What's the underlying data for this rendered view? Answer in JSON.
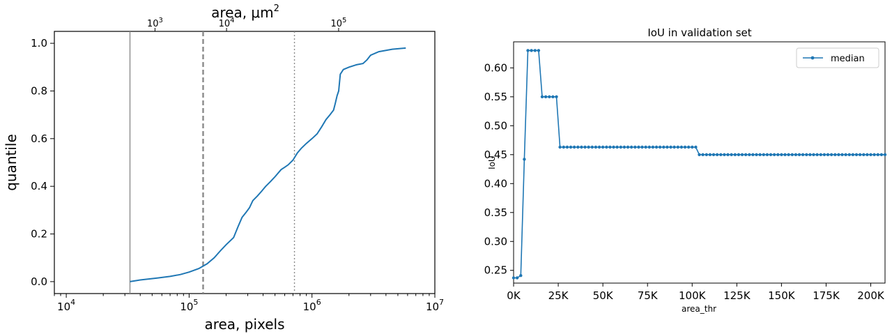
{
  "chart_data": [
    {
      "type": "line",
      "title": "",
      "xlabel": "area, pixels",
      "ylabel": "quantile",
      "x2label": "area, μm",
      "x2label_sup": "2",
      "xscale": "log",
      "x2scale": "log",
      "xlim": [
        8000,
        10000000
      ],
      "ylim": [
        -0.05,
        1.05
      ],
      "x_ticks": [
        {
          "value": 10000,
          "base": "10",
          "exp": "4"
        },
        {
          "value": 100000,
          "base": "10",
          "exp": "5"
        },
        {
          "value": 1000000,
          "base": "10",
          "exp": "6"
        },
        {
          "value": 10000000,
          "base": "10",
          "exp": "7"
        }
      ],
      "x2_ticks": [
        {
          "value": 2100,
          "base": "10",
          "exp": "3"
        },
        {
          "value": 8800,
          "base": "10",
          "exp": "4"
        },
        {
          "value": 83000,
          "base": "10",
          "exp": "5"
        }
      ],
      "y_ticks": [
        "0.0",
        "0.2",
        "0.4",
        "0.6",
        "0.8",
        "1.0"
      ],
      "vlines": [
        {
          "x": 33000,
          "style": "solid"
        },
        {
          "x": 130000,
          "style": "dashed"
        },
        {
          "x": 720000,
          "style": "dotted"
        }
      ],
      "series": [
        {
          "color": "#1f77b4",
          "x": [
            33000,
            40000,
            55000,
            70000,
            85000,
            100000,
            120000,
            140000,
            160000,
            180000,
            200000,
            230000,
            250000,
            270000,
            290000,
            310000,
            330000,
            360000,
            390000,
            420000,
            460000,
            500000,
            560000,
            600000,
            640000,
            700000,
            760000,
            820000,
            900000,
            1000000,
            1100000,
            1200000,
            1300000,
            1400000,
            1500000,
            1550000,
            1600000,
            1650000,
            1700000,
            1800000,
            2000000,
            2300000,
            2600000,
            2800000,
            3000000,
            3500000,
            4500000,
            5800000
          ],
          "y": [
            0.0,
            0.007,
            0.015,
            0.022,
            0.03,
            0.04,
            0.055,
            0.075,
            0.1,
            0.13,
            0.155,
            0.185,
            0.23,
            0.27,
            0.29,
            0.31,
            0.34,
            0.36,
            0.38,
            0.4,
            0.42,
            0.44,
            0.47,
            0.48,
            0.49,
            0.51,
            0.54,
            0.56,
            0.58,
            0.6,
            0.62,
            0.65,
            0.68,
            0.7,
            0.72,
            0.75,
            0.78,
            0.8,
            0.87,
            0.89,
            0.9,
            0.91,
            0.915,
            0.93,
            0.95,
            0.965,
            0.975,
            0.98
          ]
        }
      ]
    },
    {
      "type": "line",
      "title": "IoU in validation set",
      "xlabel": "area_thr",
      "ylabel": "IoU",
      "xlim": [
        0,
        208000
      ],
      "ylim": [
        0.228,
        0.645
      ],
      "x_ticks": [
        {
          "value": 0,
          "label": "0K"
        },
        {
          "value": 25000,
          "label": "25K"
        },
        {
          "value": 50000,
          "label": "50K"
        },
        {
          "value": 75000,
          "label": "75K"
        },
        {
          "value": 100000,
          "label": "100K"
        },
        {
          "value": 125000,
          "label": "125K"
        },
        {
          "value": 150000,
          "label": "150K"
        },
        {
          "value": 175000,
          "label": "175K"
        },
        {
          "value": 200000,
          "label": "200K"
        }
      ],
      "y_ticks": [
        "0.25",
        "0.30",
        "0.35",
        "0.40",
        "0.45",
        "0.50",
        "0.55",
        "0.60"
      ],
      "legend": {
        "position": "top-right",
        "entries": [
          "median"
        ]
      },
      "series": [
        {
          "name": "median",
          "color": "#1f77b4",
          "marker": "circle",
          "step": 2000,
          "segments": [
            {
              "from": 0,
              "to": 2000,
              "value": 0.237
            },
            {
              "from": 4000,
              "to": 4000,
              "value": 0.241
            },
            {
              "from": 6000,
              "to": 6000,
              "value": 0.442
            },
            {
              "from": 8000,
              "to": 14000,
              "value": 0.63
            },
            {
              "from": 16000,
              "to": 24000,
              "value": 0.55
            },
            {
              "from": 26000,
              "to": 102000,
              "value": 0.463
            },
            {
              "from": 104000,
              "to": 208000,
              "value": 0.45
            }
          ]
        }
      ]
    }
  ]
}
